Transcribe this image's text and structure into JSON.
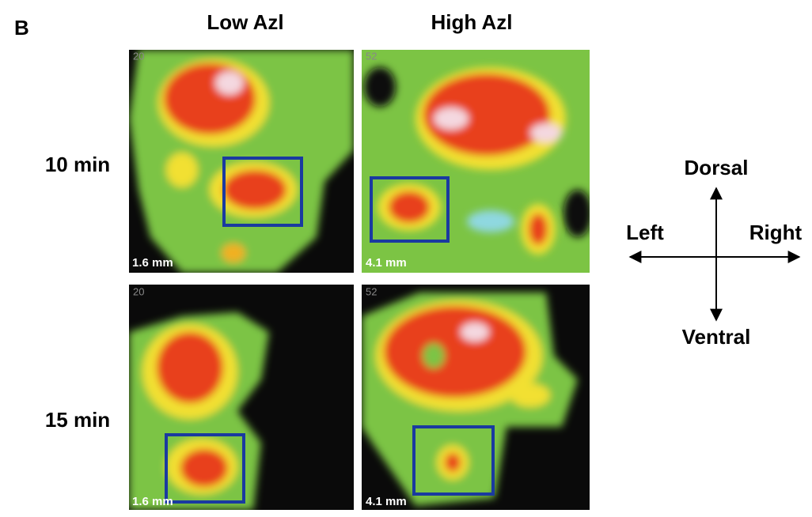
{
  "panel_label": "B",
  "columns": [
    "Low Azl",
    "High Azl"
  ],
  "rows": [
    "10 min",
    "15 min"
  ],
  "images": [
    {
      "corner": "20",
      "scale": "1.6 mm"
    },
    {
      "corner": "52",
      "scale": "4.1 mm"
    },
    {
      "corner": "20",
      "scale": "1.6 mm"
    },
    {
      "corner": "52",
      "scale": "4.1 mm"
    }
  ],
  "directions": {
    "dorsal": "Dorsal",
    "ventral": "Ventral",
    "left": "Left",
    "right": "Right"
  }
}
